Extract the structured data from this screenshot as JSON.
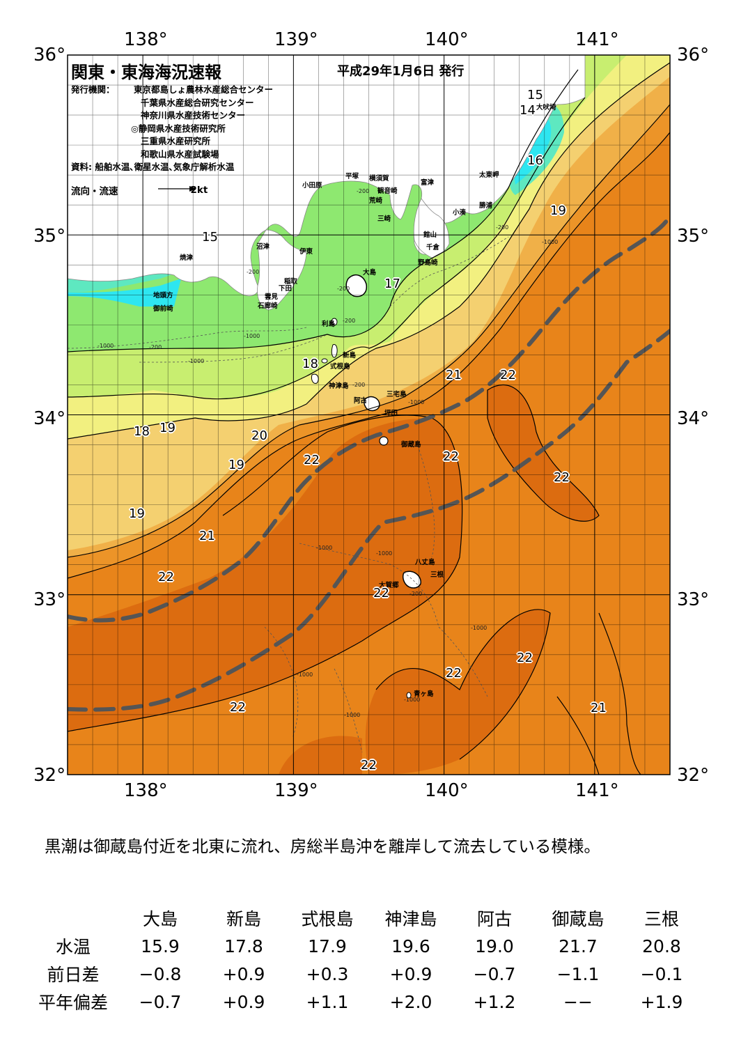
{
  "map": {
    "title": "関東・東海海況速報",
    "issue_date": "平成29年1月6日 発行",
    "org_label": "発行機関：",
    "organizations": [
      "東京都島しょ農林水産総合センター",
      "千葉県水産総合研究センター",
      "神奈川県水産技術センター",
      "◎静岡県水産技術研究所",
      "三重県水産研究所",
      "和歌山県水産試験場"
    ],
    "source": "資料: 船舶水温､衛星水温､気象庁解析水温",
    "legend_label": "流向・流速",
    "legend_scale": "2kt",
    "lon_labels": [
      "138°",
      "139°",
      "140°",
      "141°"
    ],
    "lat_labels": [
      "36°",
      "35°",
      "34°",
      "33°",
      "32°"
    ],
    "extent": {
      "lon": [
        137.5,
        141.5
      ],
      "lat": [
        32,
        36
      ]
    },
    "colors": {
      "sea_14": "#2ee6f0",
      "sea_15": "#5ee8c0",
      "sea_16": "#8ee870",
      "sea_17": "#c8ee70",
      "sea_18": "#f2f080",
      "sea_19": "#f4d070",
      "sea_20": "#f0b048",
      "sea_21": "#ec9428",
      "sea_22": "#e8841a",
      "sea_23": "#dc6c10",
      "land": "#ffffff",
      "kuroshio_axis": "#555555"
    },
    "place_names": [
      "大吠埼",
      "太東岬",
      "勝浦",
      "小湊",
      "富津",
      "観音崎",
      "横須賀",
      "荒崎",
      "三崎",
      "平塚",
      "小田原",
      "館山",
      "千倉",
      "野島崎",
      "大島",
      "沼津",
      "伊東",
      "稲取",
      "下田",
      "雲見",
      "石廊崎",
      "焼津",
      "地頭方",
      "御前崎",
      "利島",
      "新島",
      "式根島",
      "神津島",
      "阿古",
      "三宅島",
      "坪田",
      "御蔵島",
      "八丈島",
      "三根",
      "大賀郷",
      "青ヶ島"
    ],
    "isotherm_labels": [
      "15",
      "14",
      "16",
      "19",
      "15",
      "17",
      "18",
      "21",
      "22",
      "18",
      "19",
      "20",
      "19",
      "22",
      "22",
      "22",
      "19",
      "21",
      "22",
      "22",
      "22",
      "22",
      "21",
      "22",
      "22"
    ],
    "depth_labels": [
      "-200",
      "-200",
      "-1000",
      "-200",
      "-200",
      "-1000",
      "-200",
      "-1000",
      "-1000",
      "-200",
      "-200",
      "-1000",
      "-1000",
      "-1000",
      "-200",
      "-1000",
      "-1000",
      "-1000",
      "-1000"
    ]
  },
  "summary": "黒潮は御蔵島付近を北東に流れ、房総半島沖を離岸して流去している模様。",
  "table": {
    "stations": [
      "大島",
      "新島",
      "式根島",
      "神津島",
      "阿古",
      "御蔵島",
      "三根"
    ],
    "rows": [
      {
        "label": "水温",
        "values": [
          "15.9",
          "17.8",
          "17.9",
          "19.6",
          "19.0",
          "21.7",
          "20.8"
        ]
      },
      {
        "label": "前日差",
        "values": [
          "−0.8",
          "+0.9",
          "+0.3",
          "+0.9",
          "−0.7",
          "−1.1",
          "−0.1"
        ]
      },
      {
        "label": "平年偏差",
        "values": [
          "−0.7",
          "+0.9",
          "+1.1",
          "+2.0",
          "+1.2",
          "−−",
          "+1.9"
        ]
      }
    ]
  }
}
